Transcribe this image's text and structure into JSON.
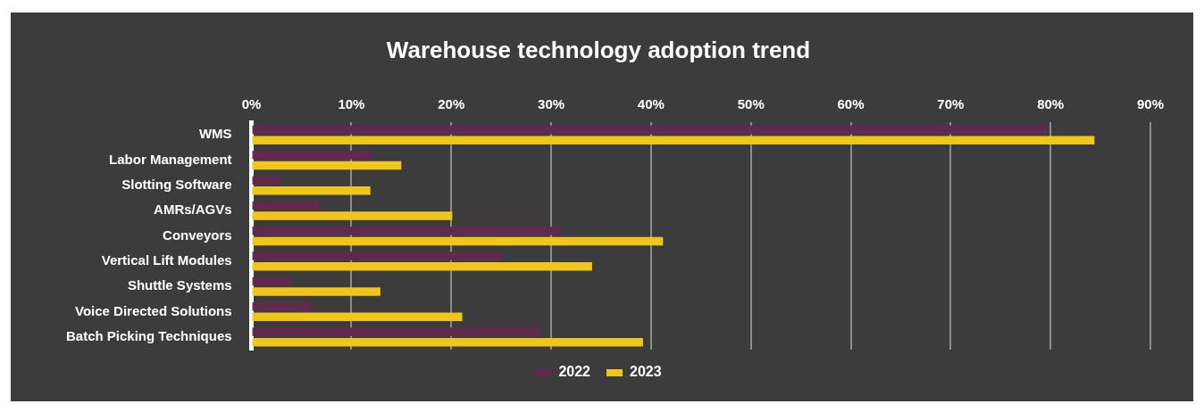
{
  "chart_data": {
    "type": "bar",
    "orientation": "horizontal",
    "title": "Warehouse technology adoption trend",
    "categories": [
      "WMS",
      "Labor Management",
      "Slotting Software",
      "AMRs/AGVs",
      "Conveyors",
      "Vertical Lift Modules",
      "Shuttle Systems",
      "Voice Directed Solutions",
      "Batch Picking Techniques"
    ],
    "series": [
      {
        "name": "2022",
        "color": "#62294f",
        "values": [
          79.6,
          11.9,
          2.9,
          6.9,
          30.9,
          25.1,
          3.9,
          6.1,
          29.1
        ]
      },
      {
        "name": "2023",
        "color": "#f0c61d",
        "values": [
          84.4,
          15,
          11.9,
          20.1,
          41.2,
          34.1,
          12.9,
          21.1,
          39.2
        ]
      }
    ],
    "xlim": [
      0,
      90
    ],
    "xticks": [
      {
        "value": 0,
        "label": "0%"
      },
      {
        "value": 10,
        "label": "10%"
      },
      {
        "value": 20,
        "label": "20%"
      },
      {
        "value": 30,
        "label": "30%"
      },
      {
        "value": 40,
        "label": "40%"
      },
      {
        "value": 50,
        "label": "50%"
      },
      {
        "value": 60,
        "label": "60%"
      },
      {
        "value": 70,
        "label": "70%"
      },
      {
        "value": 80,
        "label": "80%"
      },
      {
        "value": 90,
        "label": "90%"
      }
    ],
    "grid": "x",
    "legend": "bottom"
  }
}
